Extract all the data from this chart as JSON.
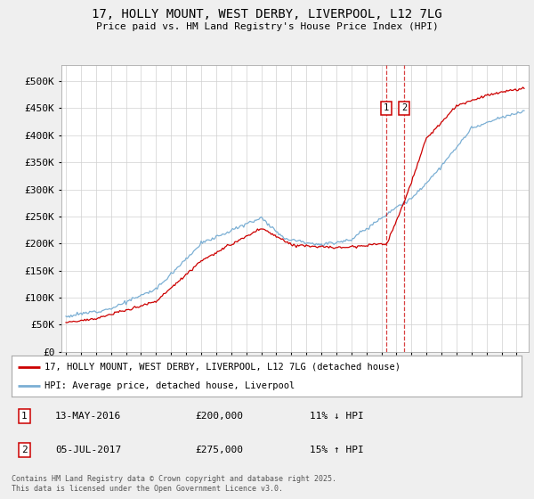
{
  "title": "17, HOLLY MOUNT, WEST DERBY, LIVERPOOL, L12 7LG",
  "subtitle": "Price paid vs. HM Land Registry's House Price Index (HPI)",
  "ylim": [
    0,
    530000
  ],
  "yticks": [
    0,
    50000,
    100000,
    150000,
    200000,
    250000,
    300000,
    350000,
    400000,
    450000,
    500000
  ],
  "ytick_labels": [
    "£0",
    "£50K",
    "£100K",
    "£150K",
    "£200K",
    "£250K",
    "£300K",
    "£350K",
    "£400K",
    "£450K",
    "£500K"
  ],
  "red_color": "#cc0000",
  "blue_color": "#7bafd4",
  "sale1_year": 2016.37,
  "sale2_year": 2017.51,
  "marker_y": 450000,
  "annotation1": [
    "1",
    "13-MAY-2016",
    "£200,000",
    "11% ↓ HPI"
  ],
  "annotation2": [
    "2",
    "05-JUL-2017",
    "£275,000",
    "15% ↑ HPI"
  ],
  "legend_line1": "17, HOLLY MOUNT, WEST DERBY, LIVERPOOL, L12 7LG (detached house)",
  "legend_line2": "HPI: Average price, detached house, Liverpool",
  "footer": "Contains HM Land Registry data © Crown copyright and database right 2025.\nThis data is licensed under the Open Government Licence v3.0.",
  "background_color": "#efefef",
  "plot_bg": "#ffffff",
  "xmin": 1994.7,
  "xmax": 2025.8
}
